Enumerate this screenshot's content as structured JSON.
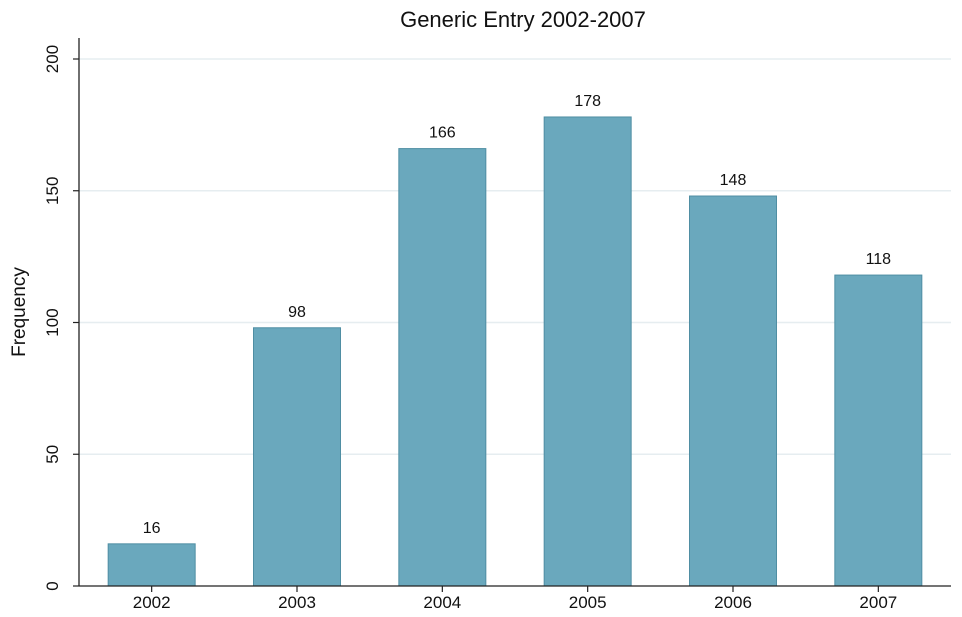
{
  "chart_data": {
    "type": "bar",
    "title": "Generic Entry 2002-2007",
    "xlabel": "",
    "ylabel": "Frequency",
    "categories": [
      "2002",
      "2003",
      "2004",
      "2005",
      "2006",
      "2007"
    ],
    "values": [
      16,
      98,
      166,
      178,
      148,
      118
    ],
    "data_labels": [
      "16",
      "98",
      "166",
      "178",
      "148",
      "118"
    ],
    "ylim": [
      0,
      200
    ],
    "yticks": [
      0,
      50,
      100,
      150,
      200
    ],
    "ytick_labels": [
      "0",
      "50",
      "100",
      "150",
      "200"
    ],
    "grid": true,
    "legend": "none",
    "colors": {
      "bar": "#6aa8bd",
      "bar_edge": "#4f8ea3",
      "grid": "#e6edf0",
      "axis": "#222222"
    }
  }
}
